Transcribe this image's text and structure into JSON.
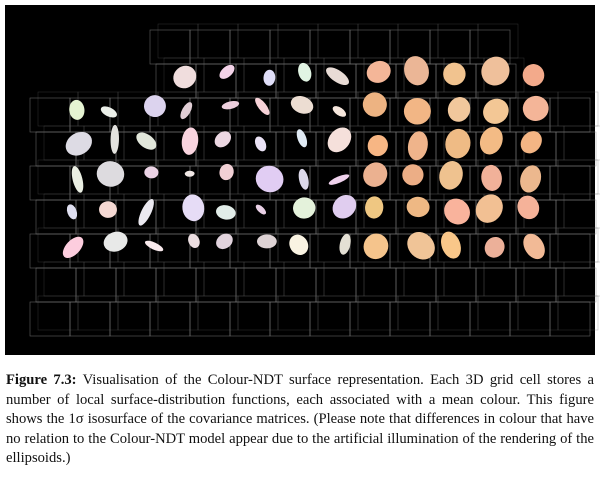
{
  "figure": {
    "label": "Figure 7.3:",
    "caption": "Visualisation of the Colour-NDT surface representation. Each 3D grid cell stores a number of local surface-distribution functions, each associated with a mean colour. This figure shows the 1σ isosurface of the covariance matrices. (Please note that differences in colour that have no relation to the Colour-NDT model appear due to the artificial illumination of the rendering of the ellipsoids.)"
  }
}
